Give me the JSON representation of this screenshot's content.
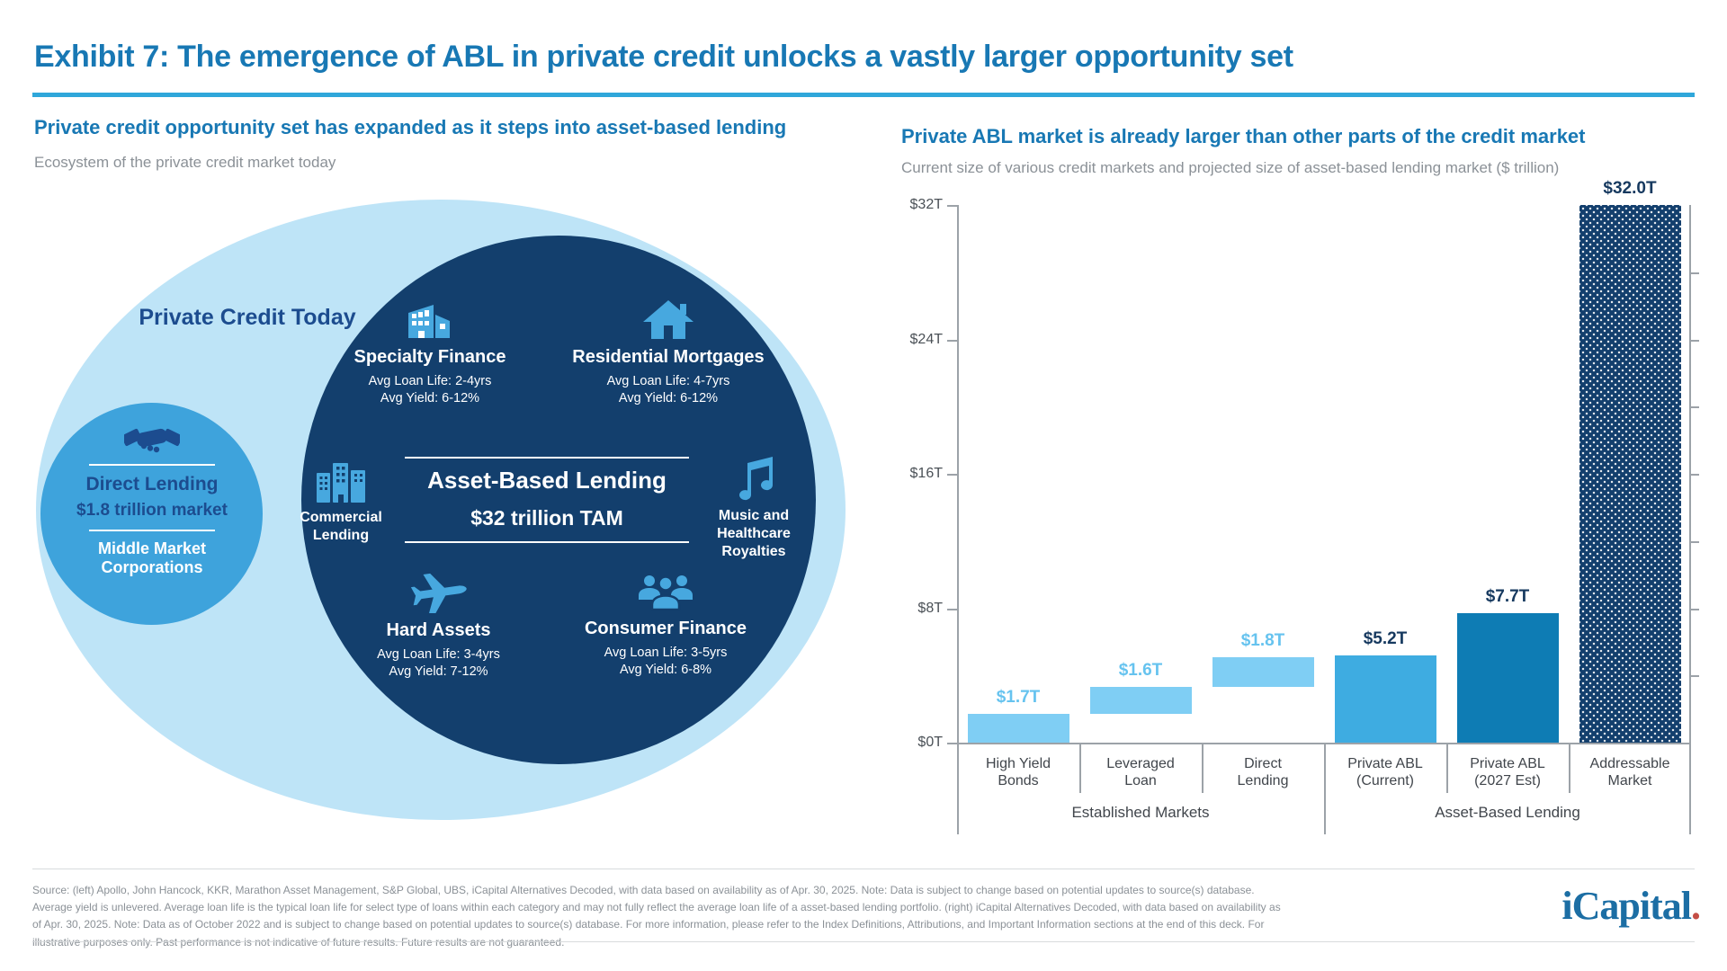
{
  "page": {
    "title": "Exhibit 7: The emergence of ABL in private credit unlocks a vastly larger opportunity set"
  },
  "colors": {
    "heading_blue": "#1878B4",
    "accent_rule": "#2FA7DA",
    "navy": "#133F6D",
    "navy_text": "#1C4C8F",
    "medium_blue": "#3EA3DC",
    "pale_blue": "#BEE4F7",
    "icon_blue": "#47A8DF",
    "bar_light": "#7FCEF4",
    "bar_medium": "#3EACE1",
    "bar_dark": "#0E7CB4",
    "value_label_light": "#66C3EF",
    "value_label_navy": "#16395F",
    "axis_gray": "#9CA2A8",
    "text_gray": "#8B9197"
  },
  "left_panel": {
    "heading": "Private credit opportunity set has expanded as it steps into asset-based lending",
    "subheading": "Ecosystem of the private credit market today",
    "outer_label": "Private Credit Today",
    "direct_lending": {
      "icon": "handshake-icon",
      "title": "Direct Lending",
      "market": "$1.8 trillion market",
      "segment": "Middle Market Corporations"
    },
    "abl": {
      "title": "Asset-Based Lending",
      "tam": "$32 trillion TAM",
      "items": [
        {
          "name": "Specialty Finance",
          "icon": "factory-icon",
          "line1": "Avg Loan Life: 2-4yrs",
          "line2": "Avg Yield: 6-12%"
        },
        {
          "name": "Residential Mortgages",
          "icon": "house-icon",
          "line1": "Avg Loan Life: 4-7yrs",
          "line2": "Avg Yield: 6-12%"
        },
        {
          "name": "Commercial Lending",
          "icon": "city-buildings-icon"
        },
        {
          "name": "Music and Healthcare Royalties",
          "icon": "music-note-icon"
        },
        {
          "name": "Hard Assets",
          "icon": "airplane-icon",
          "line1": "Avg Loan Life: 3-4yrs",
          "line2": "Avg Yield: 7-12%"
        },
        {
          "name": "Consumer Finance",
          "icon": "people-icon",
          "line1": "Avg Loan Life: 3-5yrs",
          "line2": "Avg Yield: 6-8%"
        }
      ]
    }
  },
  "right_panel": {
    "heading": "Private ABL market is already larger than other parts of the credit market",
    "subheading": "Current size of various credit markets and projected size of asset-based lending market ($ trillion)"
  },
  "chart_data": {
    "type": "bar",
    "title": "Private ABL market is already larger than other parts of the credit market",
    "subtitle": "Current size of various credit markets and projected size of asset-based lending market ($ trillion)",
    "unit": "$ trillion",
    "categories": [
      "High Yield Bonds",
      "Leveraged Loan",
      "Direct Lending",
      "Private ABL (Current)",
      "Private ABL (2027 Est)",
      "Addressable Market"
    ],
    "category_lines": [
      [
        "High Yield",
        "Bonds"
      ],
      [
        "Leveraged",
        "Loan"
      ],
      [
        "Direct",
        "Lending"
      ],
      [
        "Private ABL",
        "(Current)"
      ],
      [
        "Private ABL",
        "(2027 Est)"
      ],
      [
        "Addressable",
        "Market"
      ]
    ],
    "values": [
      1.7,
      1.6,
      1.8,
      5.2,
      7.7,
      32.0
    ],
    "value_labels": [
      "$1.7T",
      "$1.6T",
      "$1.8T",
      "$5.2T",
      "$7.7T",
      "$32.0T"
    ],
    "float_base": [
      0,
      1.7,
      3.3,
      0,
      0,
      0
    ],
    "bar_styles": [
      "light",
      "light",
      "light",
      "medium",
      "dark",
      "pattern"
    ],
    "value_label_styles": [
      "light",
      "light",
      "light",
      "navy",
      "navy",
      "navy"
    ],
    "groups": [
      {
        "label": "Established Markets",
        "start": 0,
        "count": 3
      },
      {
        "label": "Asset-Based Lending",
        "start": 3,
        "count": 3
      }
    ],
    "ylim": [
      0,
      32
    ],
    "yticks": [
      {
        "value": 0,
        "label": "$0T"
      },
      {
        "value": 8,
        "label": "$8T"
      },
      {
        "value": 16,
        "label": "$16T"
      },
      {
        "value": 24,
        "label": "$24T"
      },
      {
        "value": 32,
        "label": "$32T"
      }
    ],
    "right_minor_ticks": [
      4,
      8,
      12,
      16,
      20,
      24,
      28
    ],
    "grid": false,
    "legend": null
  },
  "footer": {
    "source": "Source: (left) Apollo, John Hancock, KKR, Marathon Asset Management, S&P Global, UBS, iCapital Alternatives Decoded, with data based on availability as of Apr. 30, 2025. Note: Data is subject to change based on potential updates to source(s) database. Average yield is unlevered. Average loan life is the typical loan life for select type of loans within each category and may not fully reflect the average loan life of a asset-based lending portfolio. (right) iCapital Alternatives Decoded, with data based on availability as of Apr. 30, 2025. Note: Data as of October 2022 and is subject to change based on potential updates to source(s) database. For more information, please refer to the Index Definitions, Attributions, and Important Information sections at the end of this deck. For illustrative purposes only. Past performance is not indicative of future results. Future results are not guaranteed.",
    "logo_text": "iCapital",
    "logo_dot": "."
  }
}
